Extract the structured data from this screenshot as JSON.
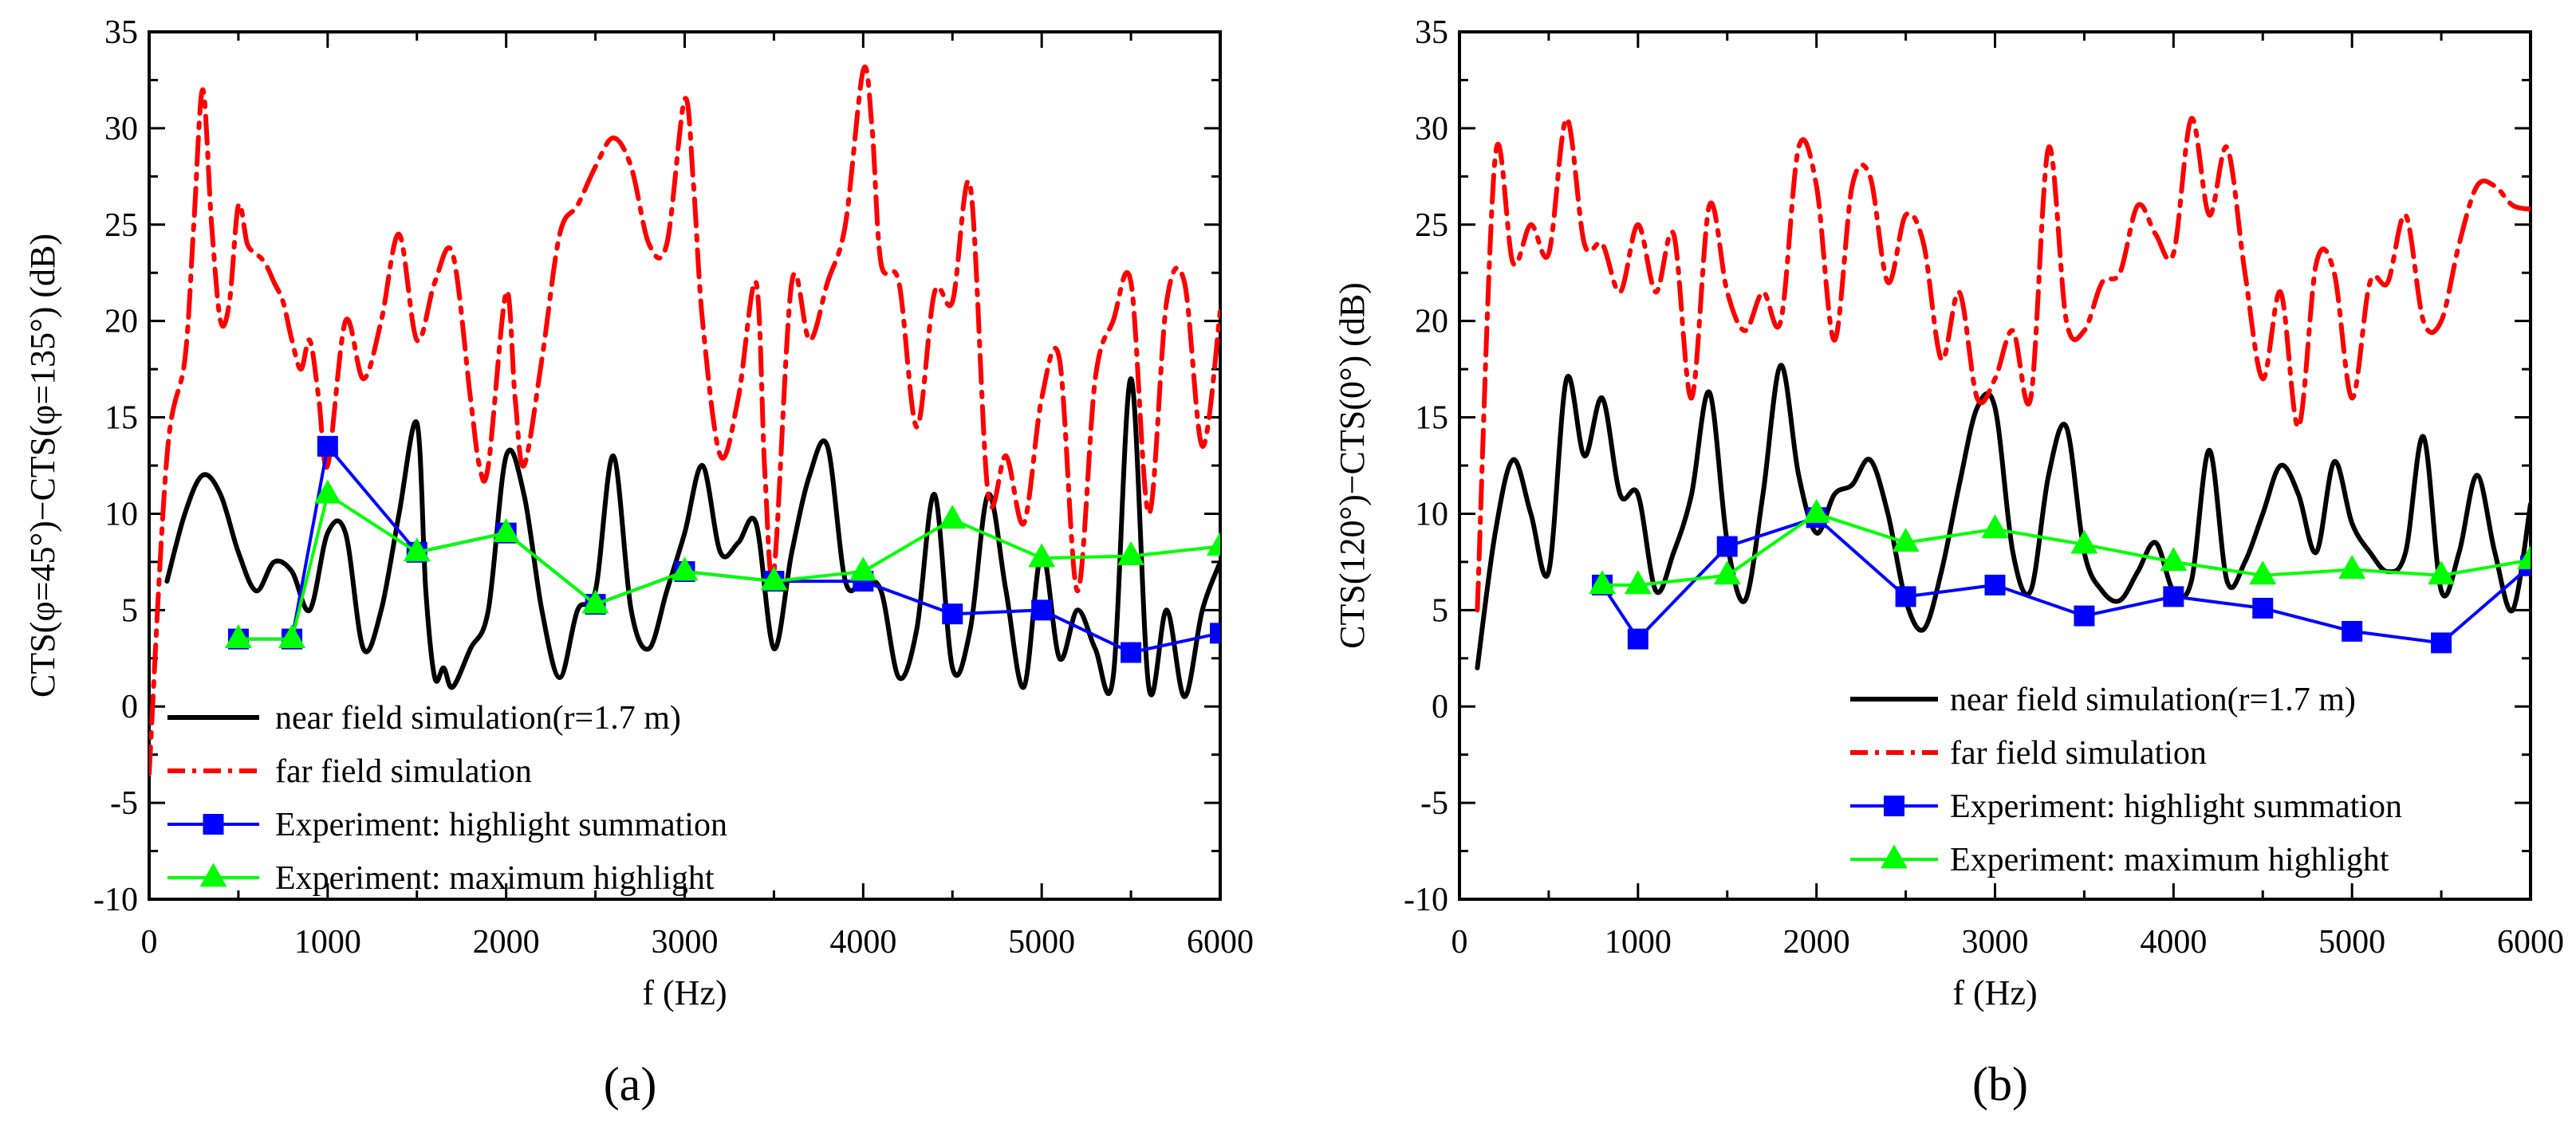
{
  "figure": {
    "panel_labels": [
      "(a)",
      "(b)"
    ]
  },
  "chart_data": [
    {
      "type": "line",
      "panel": "(a)",
      "title": "",
      "xlabel": "f (Hz)",
      "ylabel": "CTS(φ=45°)−CTS(φ=135°) (dB)",
      "xlim": [
        0,
        6000
      ],
      "ylim": [
        -10,
        35
      ],
      "xticks": [
        0,
        1000,
        2000,
        3000,
        4000,
        5000,
        6000
      ],
      "yticks": [
        -10,
        -5,
        0,
        5,
        10,
        15,
        20,
        25,
        30,
        35
      ],
      "grid": false,
      "legend_position": "bottom-left",
      "series": [
        {
          "name": "near field simulation(r=1.7 m)",
          "color": "#000000",
          "style": "solid",
          "marker": "none",
          "x": [
            100,
            200,
            300,
            400,
            500,
            600,
            700,
            800,
            900,
            1000,
            1100,
            1200,
            1300,
            1400,
            1500,
            1550,
            1600,
            1650,
            1700,
            1800,
            1900,
            2000,
            2100,
            2200,
            2300,
            2400,
            2500,
            2600,
            2700,
            2800,
            2900,
            3000,
            3100,
            3200,
            3300,
            3400,
            3500,
            3600,
            3700,
            3800,
            3900,
            4000,
            4100,
            4200,
            4300,
            4400,
            4500,
            4600,
            4700,
            4800,
            4900,
            5000,
            5100,
            5200,
            5300,
            5400,
            5500,
            5600,
            5700,
            5800,
            5900,
            6000
          ],
          "y": [
            6.5,
            10.0,
            12.0,
            11.0,
            8.0,
            6.0,
            7.5,
            7.0,
            5.0,
            9.0,
            9.0,
            3.0,
            5.0,
            10.0,
            14.7,
            6.0,
            1.5,
            2.0,
            1.0,
            3.0,
            5.0,
            13.0,
            11.0,
            5.0,
            1.5,
            5.0,
            6.0,
            13.0,
            5.0,
            3.0,
            6.0,
            9.0,
            12.5,
            8.0,
            8.5,
            9.5,
            3.0,
            8.0,
            12.0,
            13.5,
            6.5,
            6.5,
            6.0,
            1.5,
            4.0,
            11.0,
            2.0,
            4.0,
            11.0,
            6.0,
            1.0,
            8.0,
            2.5,
            5.0,
            3.0,
            1.5,
            17.0,
            1.0,
            5.0,
            0.5,
            5.0,
            7.5
          ]
        },
        {
          "name": "far field simulation",
          "color": "#ff0000",
          "style": "dash-dot",
          "marker": "none",
          "x": [
            0,
            100,
            200,
            250,
            300,
            350,
            400,
            450,
            500,
            550,
            600,
            650,
            700,
            750,
            800,
            850,
            900,
            950,
            1000,
            1100,
            1200,
            1300,
            1400,
            1500,
            1600,
            1700,
            1800,
            1850,
            1900,
            2000,
            2050,
            2100,
            2200,
            2300,
            2400,
            2500,
            2600,
            2700,
            2800,
            2900,
            3000,
            3050,
            3100,
            3200,
            3300,
            3400,
            3450,
            3500,
            3600,
            3700,
            3800,
            3900,
            4000,
            4050,
            4100,
            4200,
            4300,
            4400,
            4500,
            4600,
            4700,
            4800,
            4900,
            5000,
            5100,
            5200,
            5300,
            5400,
            5500,
            5600,
            5700,
            5800,
            5900,
            6000
          ],
          "y": [
            -3.5,
            13.0,
            18.0,
            25.0,
            32.0,
            25.0,
            20.0,
            21.0,
            26.0,
            24.0,
            23.5,
            23.0,
            22.0,
            21.0,
            19.0,
            17.5,
            19.0,
            16.0,
            12.5,
            20.0,
            17.0,
            20.0,
            24.5,
            19.0,
            22.0,
            23.5,
            16.0,
            12.5,
            12.5,
            21.5,
            16.0,
            12.5,
            18.0,
            24.5,
            26.0,
            28.0,
            29.5,
            28.0,
            24.0,
            24.0,
            31.5,
            27.0,
            20.0,
            13.0,
            16.0,
            22.0,
            12.0,
            7.0,
            22.0,
            19.0,
            22.0,
            25.0,
            33.0,
            30.0,
            23.0,
            22.0,
            14.5,
            21.5,
            21.0,
            27.0,
            11.0,
            13.0,
            9.5,
            16.0,
            18.0,
            6.0,
            17.0,
            20.0,
            22.0,
            10.0,
            21.0,
            22.0,
            13.5,
            20.5
          ]
        },
        {
          "name": "Experiment: highlight summation",
          "color": "#0000ff",
          "style": "solid",
          "marker": "square",
          "x": [
            500,
            800,
            1000,
            1500,
            2000,
            2500,
            3000,
            3500,
            4000,
            4500,
            5000,
            5500,
            6000
          ],
          "y": [
            3.5,
            3.5,
            13.5,
            8.0,
            9.0,
            5.3,
            7.0,
            6.5,
            6.5,
            4.8,
            5.0,
            2.8,
            3.8
          ]
        },
        {
          "name": "Experiment: maximum highlight",
          "color": "#00ff00",
          "style": "solid",
          "marker": "triangle",
          "x": [
            500,
            800,
            1000,
            1500,
            2000,
            2500,
            3000,
            3500,
            4000,
            4500,
            5000,
            5500,
            6000
          ],
          "y": [
            3.5,
            3.5,
            11.0,
            8.0,
            9.0,
            5.3,
            7.0,
            6.5,
            7.0,
            9.7,
            7.7,
            7.8,
            8.3
          ]
        }
      ]
    },
    {
      "type": "line",
      "panel": "(b)",
      "title": "",
      "xlabel": "f (Hz)",
      "ylabel": "CTS(120°)−CTS(0°) (dB)",
      "xlim": [
        0,
        6000
      ],
      "ylim": [
        -10,
        35
      ],
      "xticks": [
        0,
        1000,
        2000,
        3000,
        4000,
        5000,
        6000
      ],
      "yticks": [
        -10,
        -5,
        0,
        5,
        10,
        15,
        20,
        25,
        30,
        35
      ],
      "grid": false,
      "legend_position": "bottom-right",
      "series": [
        {
          "name": "near field simulation(r=1.7 m)",
          "color": "#000000",
          "style": "solid",
          "marker": "none",
          "x": [
            100,
            200,
            300,
            400,
            500,
            600,
            700,
            800,
            900,
            1000,
            1100,
            1200,
            1300,
            1400,
            1500,
            1600,
            1700,
            1800,
            1900,
            2000,
            2100,
            2200,
            2300,
            2400,
            2500,
            2600,
            2700,
            2800,
            2900,
            3000,
            3100,
            3200,
            3300,
            3400,
            3500,
            3600,
            3700,
            3800,
            3900,
            4000,
            4100,
            4200,
            4300,
            4400,
            4500,
            4600,
            4700,
            4800,
            4900,
            5000,
            5100,
            5200,
            5300,
            5400,
            5500,
            5600,
            5700,
            5800,
            5900,
            6000
          ],
          "y": [
            2.0,
            9.0,
            12.8,
            10.0,
            7.0,
            17.0,
            13.0,
            16.0,
            11.0,
            11.0,
            6.0,
            8.0,
            11.0,
            16.3,
            8.5,
            5.5,
            11.0,
            17.7,
            12.0,
            9.0,
            11.0,
            11.5,
            12.8,
            10.0,
            5.5,
            4.0,
            7.0,
            11.5,
            15.5,
            15.5,
            8.0,
            6.0,
            12.0,
            14.5,
            8.0,
            6.0,
            5.5,
            7.0,
            8.5,
            6.0,
            6.5,
            13.3,
            6.5,
            7.5,
            10.0,
            12.5,
            11.0,
            8.0,
            12.7,
            9.5,
            8.0,
            7.0,
            8.0,
            14.0,
            6.0,
            8.0,
            12.0,
            8.0,
            5.0,
            10.5
          ]
        },
        {
          "name": "far field simulation",
          "color": "#ff0000",
          "style": "dash-dot",
          "marker": "none",
          "x": [
            100,
            200,
            300,
            400,
            500,
            600,
            700,
            800,
            900,
            1000,
            1100,
            1200,
            1300,
            1400,
            1500,
            1600,
            1700,
            1800,
            1900,
            2000,
            2100,
            2200,
            2300,
            2400,
            2500,
            2600,
            2700,
            2800,
            2900,
            3000,
            3100,
            3200,
            3300,
            3400,
            3500,
            3600,
            3700,
            3800,
            3900,
            4000,
            4100,
            4200,
            4300,
            4400,
            4500,
            4600,
            4700,
            4800,
            4900,
            5000,
            5100,
            5200,
            5300,
            5400,
            5500,
            5600,
            5700,
            5800,
            5900,
            6000
          ],
          "y": [
            5.0,
            28.5,
            23.0,
            25.0,
            23.5,
            30.5,
            24.0,
            24.0,
            21.5,
            25.0,
            21.5,
            24.5,
            16.0,
            26.0,
            21.5,
            19.5,
            21.5,
            20.0,
            29.0,
            27.0,
            19.0,
            27.0,
            27.5,
            22.0,
            25.5,
            24.0,
            18.0,
            21.5,
            16.0,
            17.0,
            19.5,
            16.0,
            29.0,
            20.0,
            19.5,
            22.0,
            22.5,
            26.0,
            24.5,
            23.5,
            30.5,
            25.5,
            29.0,
            22.5,
            17.0,
            21.5,
            14.5,
            23.0,
            22.5,
            16.0,
            22.0,
            22.0,
            25.5,
            20.0,
            20.0,
            24.0,
            27.0,
            27.0,
            26.0,
            25.8
          ]
        },
        {
          "name": "Experiment: highlight summation",
          "color": "#0000ff",
          "style": "solid",
          "marker": "square",
          "x": [
            800,
            1000,
            1500,
            2000,
            2500,
            3000,
            3500,
            4000,
            4500,
            5000,
            5500,
            6000
          ],
          "y": [
            6.3,
            3.5,
            8.3,
            9.8,
            5.7,
            6.3,
            4.7,
            5.7,
            5.1,
            3.9,
            3.3,
            7.3
          ]
        },
        {
          "name": "Experiment: maximum highlight",
          "color": "#00ff00",
          "style": "solid",
          "marker": "triangle",
          "x": [
            800,
            1000,
            1500,
            2000,
            2500,
            3000,
            3500,
            4000,
            4500,
            5000,
            5500,
            6000
          ],
          "y": [
            6.3,
            6.3,
            6.8,
            10.0,
            8.5,
            9.2,
            8.4,
            7.5,
            6.8,
            7.1,
            6.8,
            7.6
          ]
        }
      ]
    }
  ]
}
